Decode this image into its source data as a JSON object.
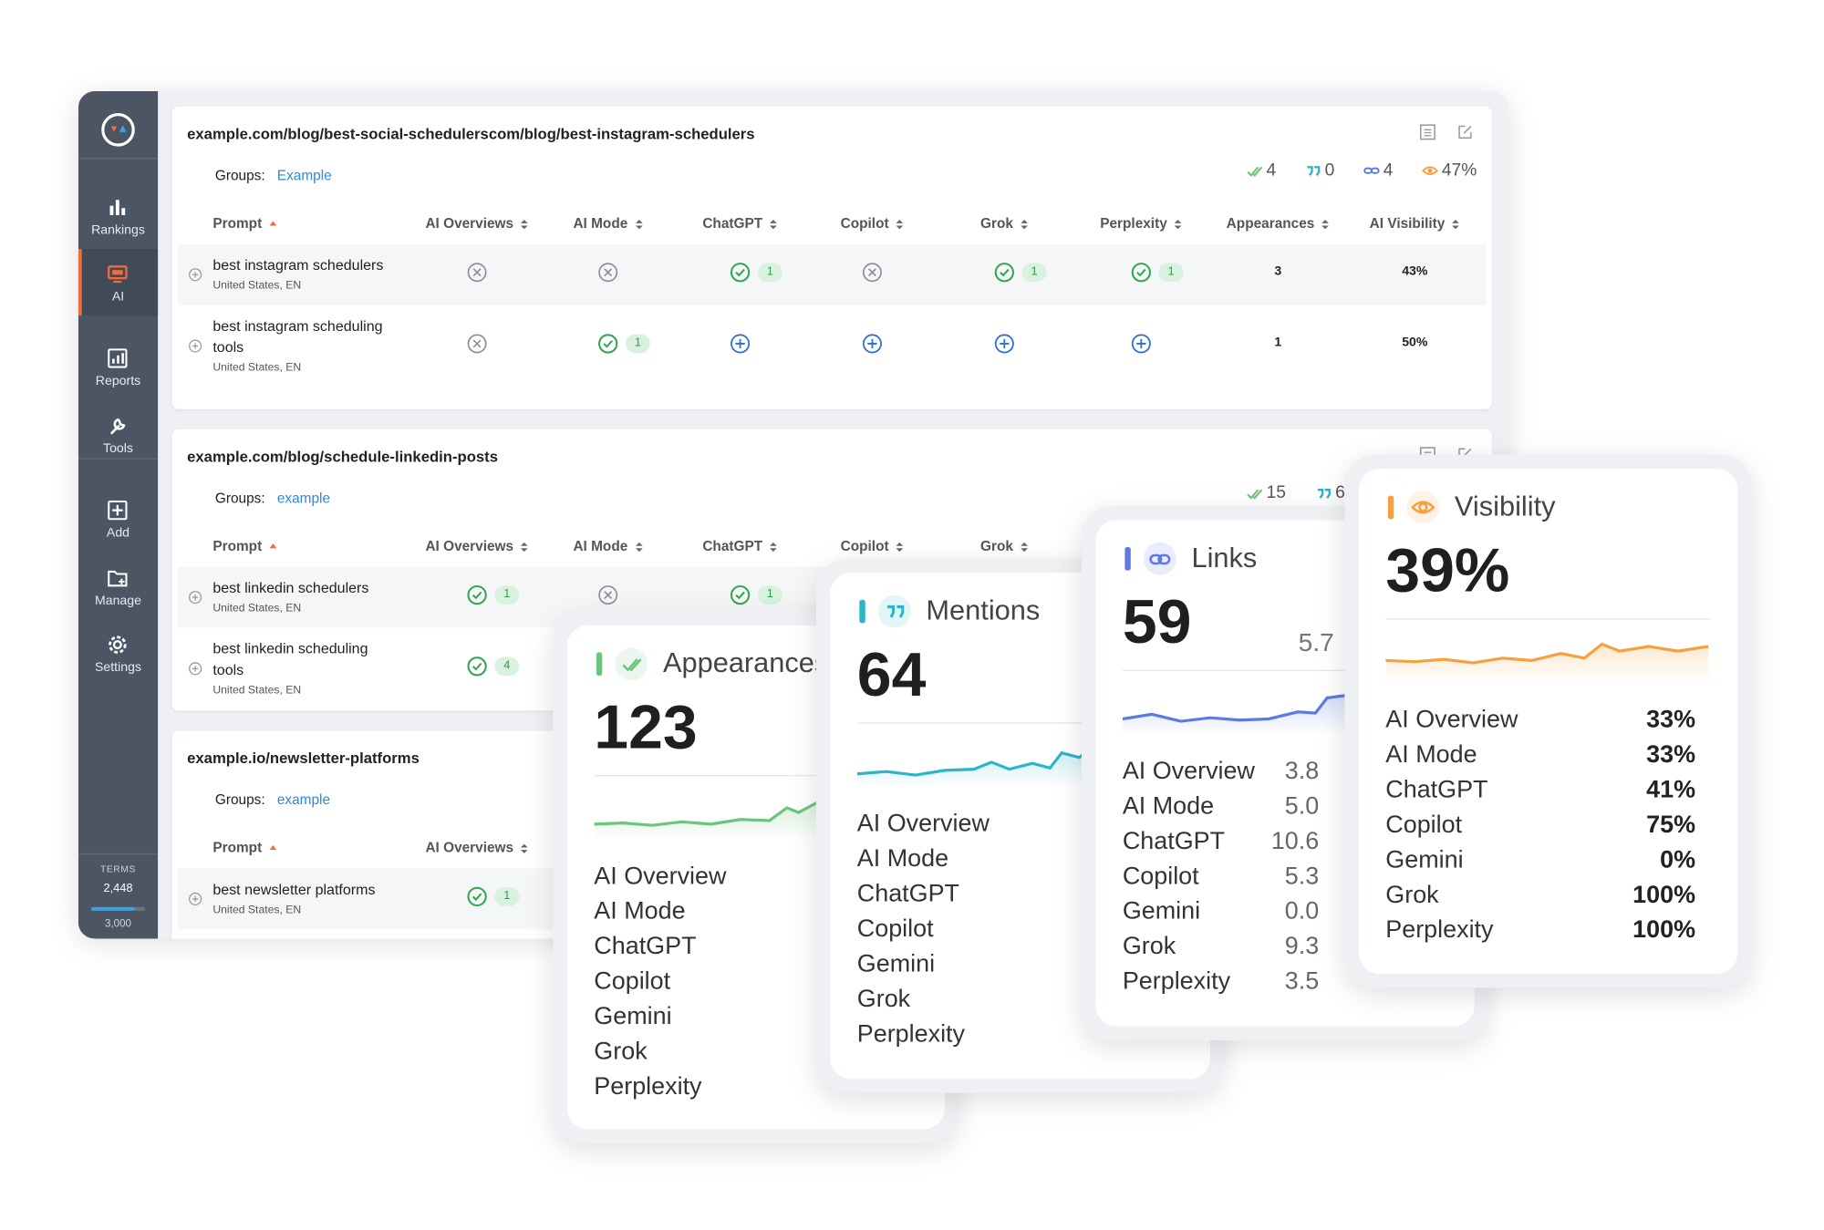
{
  "sidebar": {
    "items": [
      "Rankings",
      "AI",
      "Reports",
      "Tools",
      "Add",
      "Manage",
      "Settings"
    ],
    "active": 1,
    "terms_label": "TERMS",
    "terms_used": "2,448",
    "terms_total": "3,000"
  },
  "panels": [
    {
      "url": "example.com/blog/best-social-schedulerscom/blog/best-instagram-schedulers",
      "groups_label": "Groups:",
      "group": "Example",
      "stats": [
        {
          "kind": "appearances",
          "value": "4"
        },
        {
          "kind": "mentions",
          "value": "0"
        },
        {
          "kind": "links",
          "value": "4"
        },
        {
          "kind": "visibility",
          "value": "47%"
        }
      ],
      "columns": [
        "Prompt",
        "AI Overviews",
        "AI Mode",
        "ChatGPT",
        "Copilot",
        "Grok",
        "Perplexity",
        "Appearances",
        "AI Visibility"
      ],
      "rows": [
        {
          "prompt": "best instagram schedulers",
          "location": "United States, EN",
          "cells": [
            {
              "status": "no"
            },
            {
              "status": "no"
            },
            {
              "status": "yes",
              "count": "1"
            },
            {
              "status": "no"
            },
            {
              "status": "yes",
              "count": "1"
            },
            {
              "status": "yes",
              "count": "1"
            }
          ],
          "appearances": "3",
          "visibility": "43%"
        },
        {
          "prompt": "best instagram scheduling tools",
          "location": "United States, EN",
          "cells": [
            {
              "status": "no"
            },
            {
              "status": "yes",
              "count": "1"
            },
            {
              "status": "add"
            },
            {
              "status": "add"
            },
            {
              "status": "add"
            },
            {
              "status": "add"
            }
          ],
          "appearances": "1",
          "visibility": "50%"
        }
      ]
    },
    {
      "url": "example.com/blog/schedule-linkedin-posts",
      "groups_label": "Groups:",
      "group": "example",
      "stats": [
        {
          "kind": "appearances",
          "value": "15"
        },
        {
          "kind": "mentions",
          "value": "6"
        }
      ],
      "columns": [
        "Prompt",
        "AI Overviews",
        "AI Mode",
        "ChatGPT",
        "Copilot",
        "Grok"
      ],
      "rows": [
        {
          "prompt": "best linkedin schedulers",
          "location": "United States, EN",
          "cells": [
            {
              "status": "yes",
              "count": "1"
            },
            {
              "status": "no"
            },
            {
              "status": "yes",
              "count": "1"
            }
          ]
        },
        {
          "prompt": "best linkedin scheduling tools",
          "location": "United States, EN",
          "cells": [
            {
              "status": "yes",
              "count": "4"
            }
          ]
        }
      ]
    },
    {
      "url": "example.io/newsletter-platforms",
      "groups_label": "Groups:",
      "group": "example",
      "columns": [
        "Prompt",
        "AI Overviews"
      ],
      "rows": [
        {
          "prompt": "best newsletter platforms",
          "location": "United States, EN",
          "cells": [
            {
              "status": "yes",
              "count": "1"
            }
          ]
        }
      ]
    }
  ],
  "cards": [
    {
      "kind": "appearances",
      "title": "Appearances",
      "value": "123",
      "color": "#6cc57c",
      "items": [
        {
          "label": "AI Overview"
        },
        {
          "label": "AI Mode"
        },
        {
          "label": "ChatGPT"
        },
        {
          "label": "Copilot"
        },
        {
          "label": "Gemini"
        },
        {
          "label": "Grok"
        },
        {
          "label": "Perplexity"
        }
      ]
    },
    {
      "kind": "mentions",
      "title": "Mentions",
      "value": "64",
      "color": "#2bb5c6",
      "items": [
        {
          "label": "AI Overview"
        },
        {
          "label": "AI Mode"
        },
        {
          "label": "ChatGPT"
        },
        {
          "label": "Copilot"
        },
        {
          "label": "Gemini"
        },
        {
          "label": "Grok"
        },
        {
          "label": "Perplexity"
        }
      ]
    },
    {
      "kind": "links",
      "title": "Links",
      "value": "59",
      "secondary": "5.7",
      "color": "#5b7be0",
      "items": [
        {
          "label": "AI Overview",
          "value": "3.8"
        },
        {
          "label": "AI Mode",
          "value": "5.0"
        },
        {
          "label": "ChatGPT",
          "value": "10.6"
        },
        {
          "label": "Copilot",
          "value": "5.3"
        },
        {
          "label": "Gemini",
          "value": "0.0"
        },
        {
          "label": "Grok",
          "value": "9.3"
        },
        {
          "label": "Perplexity",
          "value": "3.5"
        }
      ]
    },
    {
      "kind": "visibility",
      "title": "Visibility",
      "value": "39%",
      "color": "#f5a142",
      "items": [
        {
          "label": "AI Overview",
          "value": "33%"
        },
        {
          "label": "AI Mode",
          "value": "33%"
        },
        {
          "label": "ChatGPT",
          "value": "41%"
        },
        {
          "label": "Copilot",
          "value": "75%"
        },
        {
          "label": "Gemini",
          "value": "0%"
        },
        {
          "label": "Grok",
          "value": "100%"
        },
        {
          "label": "Perplexity",
          "value": "100%"
        }
      ]
    }
  ]
}
